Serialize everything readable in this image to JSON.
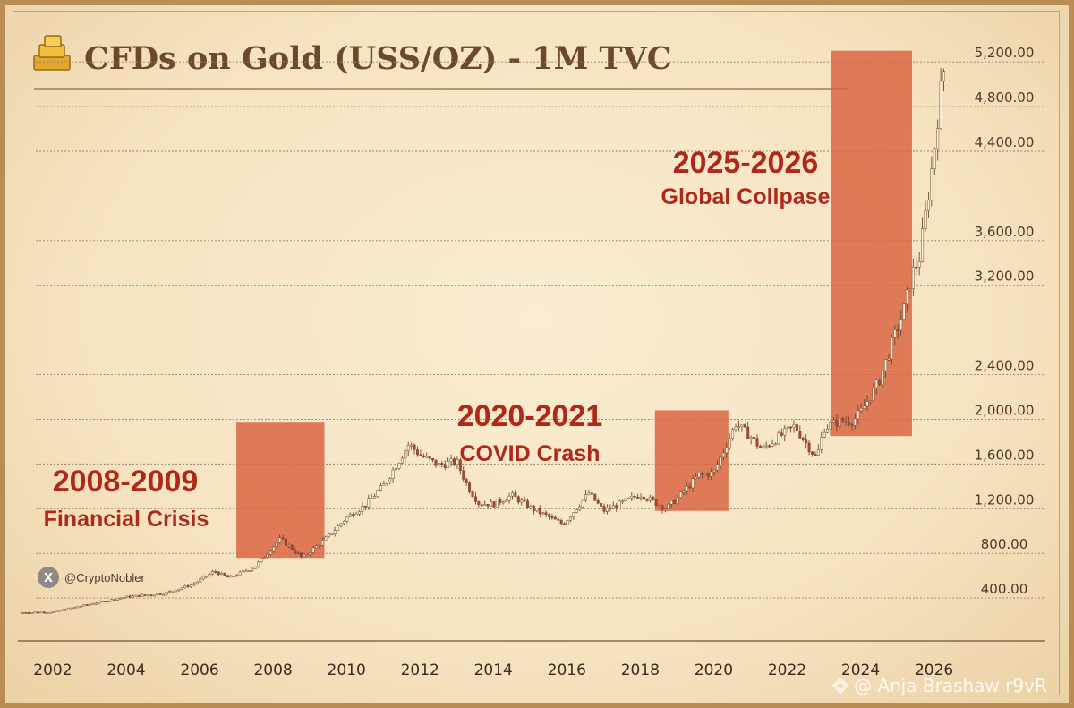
{
  "title": "CFDs on Gold (USS/OZ) - 1M TVC",
  "handle": "@CryptoNobler",
  "watermark": "@ Anja Brashaw r9vR",
  "colors": {
    "up": "#fbf3dc",
    "down": "#b3432e",
    "wick": "#6e4a2e",
    "highlight": "#d9623f",
    "annotation": "#b0281a"
  },
  "chart_data": {
    "type": "candlestick",
    "title": "CFDs on Gold (USS/OZ) - 1M TVC",
    "xlim": [
      2001.1,
      2026.4
    ],
    "ylim": [
      0,
      5450
    ],
    "x_ticks": [
      "2002",
      "2004",
      "2006",
      "2008",
      "2010",
      "2012",
      "2014",
      "2016",
      "2018",
      "2020",
      "2022",
      "2024",
      "2026"
    ],
    "y_ticks": [
      {
        "value": 400,
        "label": "400.00"
      },
      {
        "value": 800,
        "label": "800.00"
      },
      {
        "value": 1200,
        "label": "1,200.00"
      },
      {
        "value": 1600,
        "label": "1,600.00"
      },
      {
        "value": 2000,
        "label": "2,000.00"
      },
      {
        "value": 2400,
        "label": "2,400.00"
      },
      {
        "value": 3200,
        "label": "3,200.00"
      },
      {
        "value": 3600,
        "label": "3,600.00"
      },
      {
        "value": 4400,
        "label": "4,400.00"
      },
      {
        "value": 4800,
        "label": "4,800.00"
      },
      {
        "value": 5200,
        "label": "5,200.00"
      }
    ],
    "series_points": [
      [
        2001.1,
        270
      ],
      [
        2002,
        275
      ],
      [
        2003,
        345
      ],
      [
        2004,
        410
      ],
      [
        2005,
        440
      ],
      [
        2005.8,
        520
      ],
      [
        2006.4,
        640
      ],
      [
        2006.8,
        580
      ],
      [
        2007.5,
        680
      ],
      [
        2008.2,
        930
      ],
      [
        2008.8,
        760
      ],
      [
        2009.5,
        950
      ],
      [
        2010,
        1120
      ],
      [
        2010.5,
        1230
      ],
      [
        2011,
        1400
      ],
      [
        2011.7,
        1780
      ],
      [
        2012,
        1680
      ],
      [
        2012.5,
        1590
      ],
      [
        2013,
        1620
      ],
      [
        2013.3,
        1400
      ],
      [
        2013.6,
        1250
      ],
      [
        2014,
        1240
      ],
      [
        2014.5,
        1320
      ],
      [
        2015,
        1210
      ],
      [
        2015.9,
        1060
      ],
      [
        2016.6,
        1340
      ],
      [
        2017,
        1180
      ],
      [
        2017.5,
        1250
      ],
      [
        2018,
        1330
      ],
      [
        2018.7,
        1200
      ],
      [
        2019,
        1290
      ],
      [
        2019.6,
        1500
      ],
      [
        2020,
        1520
      ],
      [
        2020.6,
        1960
      ],
      [
        2021,
        1850
      ],
      [
        2021.3,
        1730
      ],
      [
        2021.6,
        1800
      ],
      [
        2022.2,
        1940
      ],
      [
        2022.8,
        1650
      ],
      [
        2023,
        1920
      ],
      [
        2023.4,
        1980
      ],
      [
        2023.8,
        1990
      ],
      [
        2024,
        2060
      ],
      [
        2024.5,
        2340
      ],
      [
        2024.9,
        2720
      ],
      [
        2025.2,
        3000
      ],
      [
        2025.4,
        3300
      ],
      [
        2025.6,
        3450
      ],
      [
        2025.8,
        3900
      ],
      [
        2026.0,
        4400
      ],
      [
        2026.15,
        4860
      ],
      [
        2026.3,
        5200
      ]
    ],
    "highlights": [
      {
        "x0": 2007.0,
        "x1": 2009.4,
        "y0": 760,
        "y1": 1970
      },
      {
        "x0": 2018.4,
        "x1": 2020.4,
        "y0": 1180,
        "y1": 2080
      },
      {
        "x0": 2023.2,
        "x1": 2025.4,
        "y0": 1850,
        "y1": 5300
      }
    ],
    "annotations": [
      {
        "year": "2008-2009",
        "label": "Financial Crisis"
      },
      {
        "year": "2020-2021",
        "label": "COVID Crash"
      },
      {
        "year": "2025-2026",
        "label": "Global Collpase"
      }
    ]
  }
}
